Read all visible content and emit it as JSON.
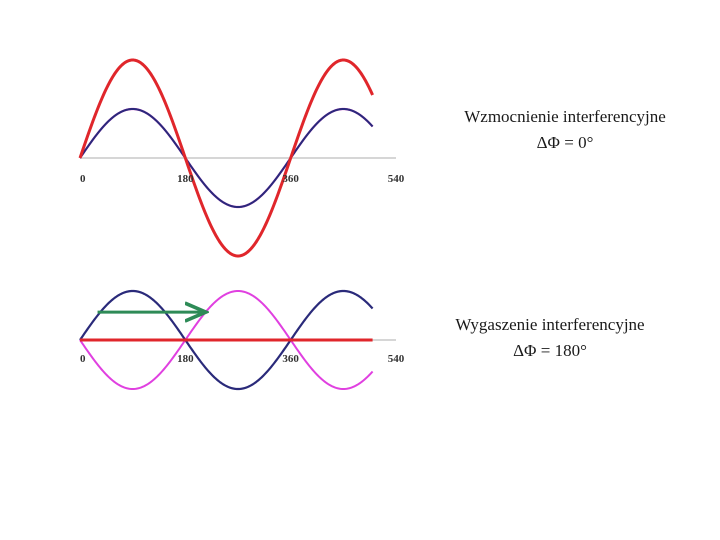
{
  "chart_data": [
    {
      "type": "line",
      "x_axis": {
        "min": 0,
        "max": 540,
        "tick_labels": [
          "0",
          "180",
          "360",
          "540"
        ]
      },
      "x_data_max": 500,
      "series": [
        {
          "color": "#cc33cc",
          "amplitude": 1.0,
          "phase_deg": 0
        },
        {
          "color": "#2a2a7a",
          "amplitude": 1.0,
          "phase_deg": 0
        },
        {
          "color": "#e0262b",
          "amplitude": 2.0,
          "phase_deg": 0
        }
      ],
      "annotation": {
        "line1": "Wzmocnienie interferencyjne",
        "line2": "ΔΦ = 0°"
      }
    },
    {
      "type": "line",
      "x_axis": {
        "min": 0,
        "max": 540,
        "tick_labels": [
          "0",
          "180",
          "360",
          "540"
        ]
      },
      "x_data_max": 500,
      "series": [
        {
          "color": "#2a2a7a",
          "amplitude": 1.0,
          "phase_deg": 0
        },
        {
          "color": "#e040e0",
          "amplitude": 1.0,
          "phase_deg": 180
        },
        {
          "color": "#e0262b",
          "amplitude": 0.0,
          "phase_deg": 0
        }
      ],
      "phase_arrow": {
        "from_deg": 30,
        "to_deg": 210,
        "color": "#2e8b57"
      },
      "annotation": {
        "line1": "Wygaszenie interferencyjne",
        "line2": "ΔΦ = 180°"
      }
    }
  ]
}
